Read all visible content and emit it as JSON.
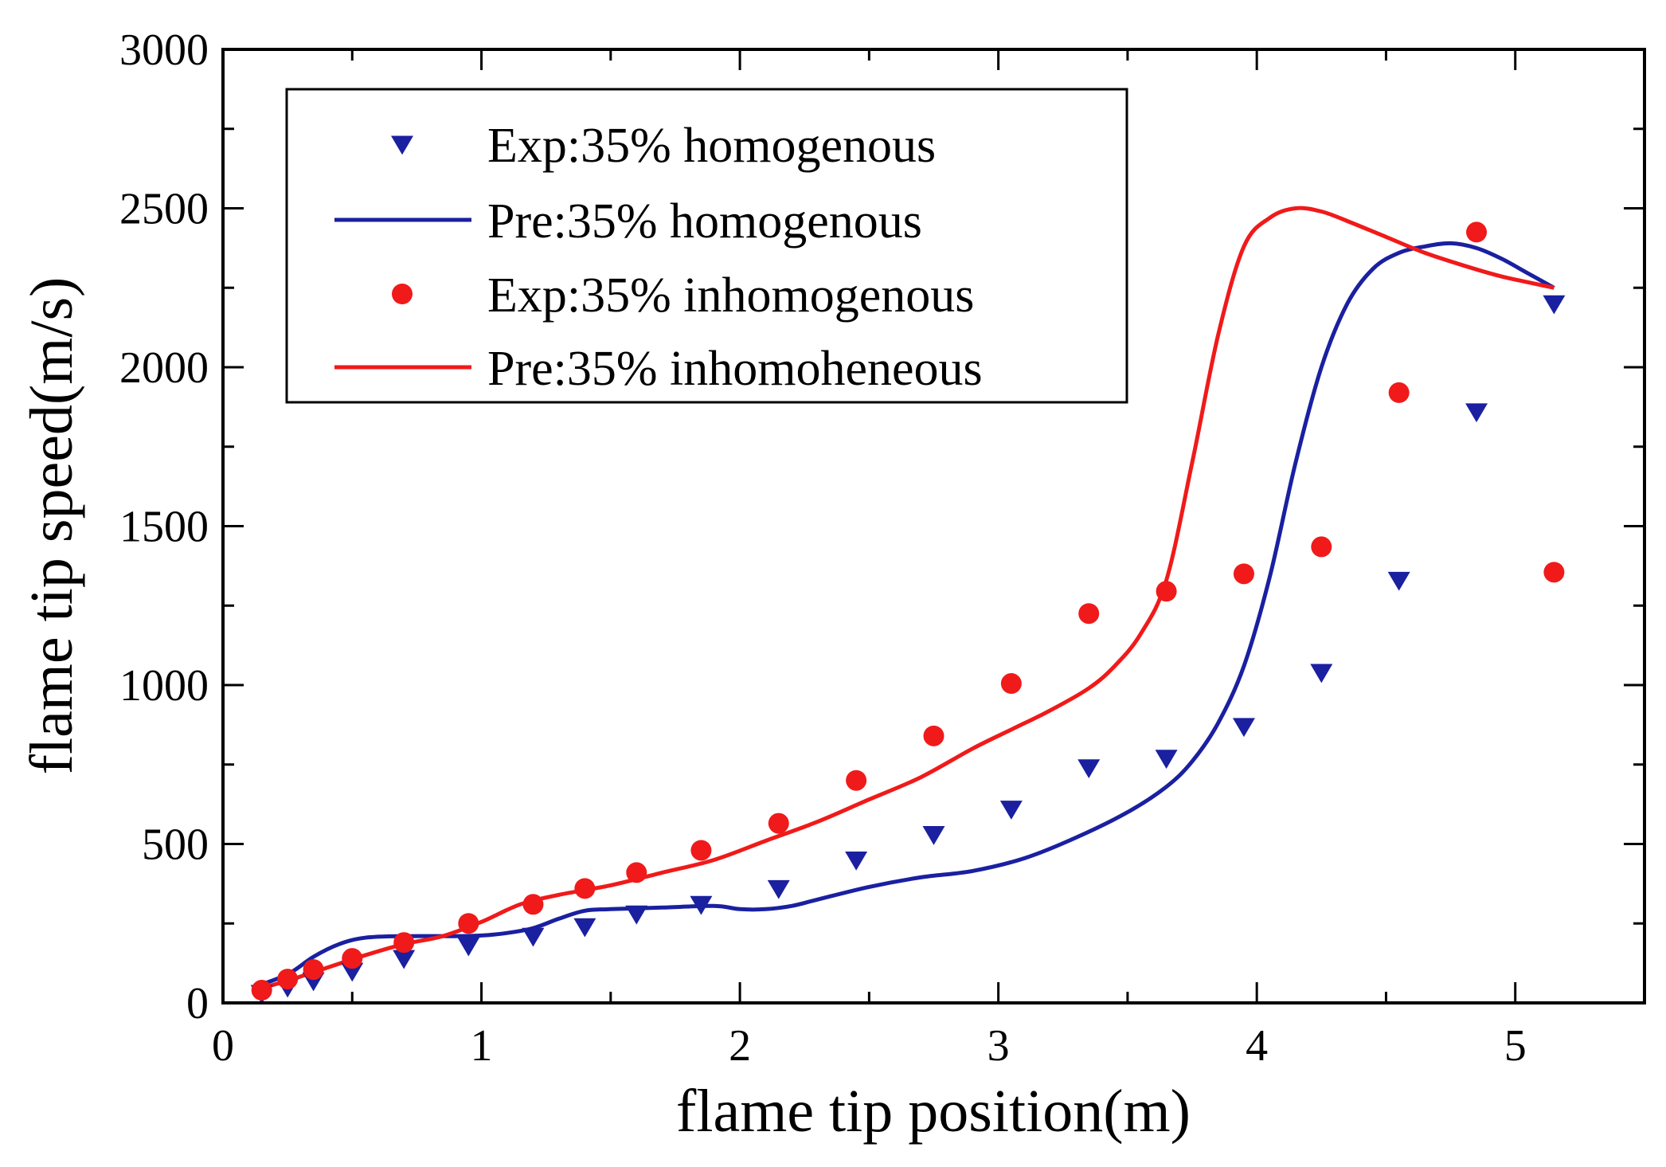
{
  "chart_data": {
    "type": "line",
    "title": "",
    "xlabel": "flame tip position(m)",
    "ylabel": "flame tip speed(m/s)",
    "xlim": [
      0,
      5.5
    ],
    "ylim": [
      0,
      3000
    ],
    "xticks": [
      0,
      1,
      2,
      3,
      4,
      5
    ],
    "yticks": [
      0,
      500,
      1000,
      1500,
      2000,
      2500,
      3000
    ],
    "xtick_labels": [
      "0",
      "1",
      "2",
      "3",
      "4",
      "5"
    ],
    "ytick_labels": [
      "0",
      "500",
      "1000",
      "1500",
      "2000",
      "2500",
      "3000"
    ],
    "grid": false,
    "legend_position": "top-left",
    "colors": {
      "blue": "#1a20a0",
      "red": "#f01a1a"
    },
    "series": [
      {
        "name": "Exp:35%  homogenous",
        "kind": "scatter",
        "marker": "triangle-down",
        "color": "#1a20a0",
        "x": [
          0.15,
          0.25,
          0.35,
          0.5,
          0.7,
          0.95,
          1.2,
          1.4,
          1.6,
          1.85,
          2.15,
          2.45,
          2.75,
          3.05,
          3.35,
          3.65,
          3.95,
          4.25,
          4.55,
          4.85,
          5.15
        ],
        "y": [
          30,
          50,
          70,
          100,
          140,
          180,
          210,
          240,
          280,
          310,
          360,
          450,
          530,
          610,
          740,
          770,
          870,
          1040,
          1330,
          1860,
          2200
        ]
      },
      {
        "name": "Pre:35%  homogenous",
        "kind": "line",
        "color": "#1a20a0",
        "x": [
          0.12,
          0.25,
          0.35,
          0.45,
          0.55,
          0.7,
          0.9,
          1.0,
          1.1,
          1.2,
          1.3,
          1.4,
          1.5,
          1.7,
          1.9,
          2.0,
          2.1,
          2.2,
          2.3,
          2.5,
          2.7,
          2.9,
          3.1,
          3.3,
          3.5,
          3.65,
          3.75,
          3.85,
          3.95,
          4.05,
          4.15,
          4.25,
          4.35,
          4.45,
          4.55,
          4.65,
          4.75,
          4.85,
          4.95,
          5.05,
          5.15
        ],
        "y": [
          50,
          90,
          145,
          185,
          205,
          210,
          210,
          212,
          220,
          235,
          265,
          290,
          295,
          300,
          305,
          295,
          295,
          305,
          325,
          365,
          395,
          415,
          455,
          520,
          600,
          680,
          760,
          880,
          1060,
          1340,
          1700,
          2000,
          2200,
          2310,
          2360,
          2380,
          2390,
          2375,
          2340,
          2295,
          2250
        ]
      },
      {
        "name": "Exp:35% inhomogenous",
        "kind": "scatter",
        "marker": "circle",
        "color": "#f01a1a",
        "x": [
          0.15,
          0.25,
          0.35,
          0.5,
          0.7,
          0.95,
          1.2,
          1.4,
          1.6,
          1.85,
          2.15,
          2.45,
          2.75,
          3.05,
          3.35,
          3.65,
          3.95,
          4.25,
          4.55,
          4.85,
          5.15
        ],
        "y": [
          40,
          75,
          105,
          140,
          190,
          250,
          310,
          360,
          410,
          480,
          565,
          700,
          840,
          1005,
          1225,
          1295,
          1350,
          1435,
          1920,
          2425,
          1355
        ]
      },
      {
        "name": "Pre:35% inhomoheneous",
        "kind": "line",
        "color": "#f01a1a",
        "x": [
          0.12,
          0.25,
          0.4,
          0.55,
          0.7,
          0.85,
          1.0,
          1.15,
          1.3,
          1.5,
          1.7,
          1.9,
          2.1,
          2.3,
          2.5,
          2.7,
          2.9,
          3.05,
          3.2,
          3.35,
          3.45,
          3.55,
          3.65,
          3.75,
          3.85,
          3.95,
          4.05,
          4.15,
          4.25,
          4.35,
          4.5,
          4.65,
          4.8,
          4.95,
          5.15
        ],
        "y": [
          40,
          70,
          110,
          150,
          185,
          210,
          255,
          310,
          340,
          370,
          410,
          450,
          510,
          570,
          640,
          710,
          800,
          860,
          920,
          990,
          1060,
          1160,
          1330,
          1700,
          2100,
          2380,
          2470,
          2500,
          2490,
          2460,
          2410,
          2360,
          2320,
          2285,
          2250
        ]
      }
    ]
  }
}
